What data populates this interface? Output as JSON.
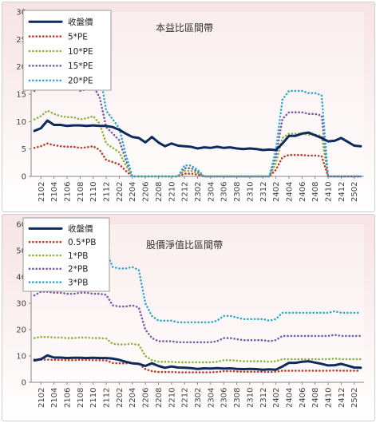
{
  "chart_data": [
    {
      "type": "line",
      "title": "本益比區間帶",
      "ylim": [
        0,
        30
      ],
      "yticks": [
        0,
        5,
        10,
        15,
        20,
        25,
        30
      ],
      "x": [
        "2101",
        "2102",
        "2103",
        "2104",
        "2105",
        "2106",
        "2107",
        "2108",
        "2109",
        "2110",
        "2111",
        "2112",
        "2201",
        "2202",
        "2203",
        "2204",
        "2205",
        "2206",
        "2207",
        "2208",
        "2209",
        "2210",
        "2211",
        "2212",
        "2301",
        "2302",
        "2303",
        "2304",
        "2305",
        "2306",
        "2307",
        "2308",
        "2309",
        "2310",
        "2311",
        "2312",
        "2401",
        "2402",
        "2403",
        "2404",
        "2405",
        "2406",
        "2407",
        "2408",
        "2409",
        "2410",
        "2411",
        "2412",
        "2501",
        "2502",
        "2503"
      ],
      "xtick_labels": [
        "2102",
        "2104",
        "2106",
        "2108",
        "2110",
        "2112",
        "2202",
        "2204",
        "2206",
        "2208",
        "2210",
        "2212",
        "2302",
        "2304",
        "2306",
        "2308",
        "2310",
        "2312",
        "2402",
        "2404",
        "2406",
        "2408",
        "2410",
        "2412",
        "2502"
      ],
      "legend_position": "top-left",
      "series": [
        {
          "name": "收盤價",
          "color": "#0e2a5c",
          "style": "solid",
          "values": [
            8.3,
            8.8,
            10.2,
            9.4,
            9.4,
            9.2,
            9.3,
            9.3,
            9.2,
            9.3,
            9.2,
            9.2,
            9.0,
            8.5,
            7.8,
            7.2,
            7.0,
            6.2,
            7.2,
            6.2,
            5.5,
            6.0,
            5.6,
            5.5,
            5.4,
            5.1,
            5.3,
            5.2,
            5.4,
            5.2,
            5.3,
            5.1,
            5.0,
            5.1,
            5.0,
            4.8,
            4.9,
            4.8,
            6.0,
            7.4,
            7.4,
            7.8,
            8.0,
            7.5,
            7.0,
            6.4,
            6.5,
            7.0,
            6.3,
            5.6,
            5.5
          ]
        },
        {
          "name": "5*PE",
          "color": "#c0392b",
          "style": "dotted",
          "values": [
            5.2,
            5.5,
            6.0,
            5.7,
            5.5,
            5.4,
            5.4,
            5.2,
            5.3,
            5.5,
            4.8,
            3.0,
            2.6,
            2.2,
            1.0,
            0,
            0,
            0,
            0,
            0,
            0,
            0,
            0,
            0.5,
            0.5,
            0.3,
            0,
            0,
            0,
            0,
            0,
            0,
            0,
            0,
            0,
            0,
            0,
            1.2,
            3.5,
            3.9,
            3.9,
            3.9,
            3.8,
            3.8,
            3.7,
            0,
            0,
            0,
            0,
            0,
            0
          ]
        },
        {
          "name": "10*PE",
          "color": "#8db33f",
          "style": "dotted",
          "values": [
            10.4,
            11.0,
            12.0,
            11.4,
            11.0,
            10.8,
            10.8,
            10.4,
            10.6,
            11.0,
            9.6,
            6.0,
            5.2,
            4.4,
            2.0,
            0,
            0,
            0,
            0,
            0,
            0,
            0,
            0,
            1.0,
            1.0,
            0.6,
            0,
            0,
            0,
            0,
            0,
            0,
            0,
            0,
            0,
            0,
            0,
            2.4,
            7.0,
            7.8,
            7.8,
            7.8,
            7.6,
            7.6,
            7.4,
            0,
            0,
            0,
            0,
            0,
            0
          ]
        },
        {
          "name": "15*PE",
          "color": "#7b5aa6",
          "style": "dotted",
          "values": [
            15.6,
            16.5,
            18.0,
            17.1,
            16.5,
            16.2,
            16.2,
            15.6,
            15.9,
            16.5,
            14.4,
            9.0,
            7.8,
            6.6,
            3.0,
            0,
            0,
            0,
            0,
            0,
            0,
            0,
            0,
            1.5,
            1.5,
            0.9,
            0,
            0,
            0,
            0,
            0,
            0,
            0,
            0,
            0,
            0,
            0,
            3.6,
            10.5,
            11.7,
            11.7,
            11.7,
            11.4,
            11.4,
            11.1,
            0,
            0,
            0,
            0,
            0,
            0
          ]
        },
        {
          "name": "20*PE",
          "color": "#36a9c9",
          "style": "dotted",
          "values": [
            20.8,
            22.0,
            24.0,
            22.8,
            22.0,
            21.6,
            21.6,
            20.8,
            21.2,
            22.0,
            19.2,
            12.0,
            10.4,
            8.8,
            4.0,
            0,
            0,
            0,
            0,
            0,
            0,
            0,
            0,
            2.0,
            2.0,
            1.2,
            0,
            0,
            0,
            0,
            0,
            0,
            0,
            0,
            0,
            0,
            0,
            4.8,
            14.0,
            15.6,
            15.6,
            15.6,
            15.2,
            15.2,
            14.8,
            0,
            0,
            0,
            0,
            0,
            0
          ]
        }
      ]
    },
    {
      "type": "line",
      "title": "股價淨值比區間帶",
      "ylim": [
        0,
        60
      ],
      "yticks": [
        0,
        10,
        20,
        30,
        40,
        50,
        60
      ],
      "x": [
        "2101",
        "2102",
        "2103",
        "2104",
        "2105",
        "2106",
        "2107",
        "2108",
        "2109",
        "2110",
        "2111",
        "2112",
        "2201",
        "2202",
        "2203",
        "2204",
        "2205",
        "2206",
        "2207",
        "2208",
        "2209",
        "2210",
        "2211",
        "2212",
        "2301",
        "2302",
        "2303",
        "2304",
        "2305",
        "2306",
        "2307",
        "2308",
        "2309",
        "2310",
        "2311",
        "2312",
        "2401",
        "2402",
        "2403",
        "2404",
        "2405",
        "2406",
        "2407",
        "2408",
        "2409",
        "2410",
        "2411",
        "2412",
        "2501",
        "2502",
        "2503"
      ],
      "xtick_labels": [
        "2102",
        "2104",
        "2106",
        "2108",
        "2110",
        "2112",
        "2202",
        "2204",
        "2206",
        "2208",
        "2210",
        "2212",
        "2302",
        "2304",
        "2306",
        "2308",
        "2310",
        "2312",
        "2402",
        "2404",
        "2406",
        "2408",
        "2410",
        "2412",
        "2502"
      ],
      "legend_position": "top-left",
      "series": [
        {
          "name": "收盤價",
          "color": "#0e2a5c",
          "style": "solid",
          "values": [
            8.3,
            8.8,
            10.2,
            9.4,
            9.4,
            9.2,
            9.3,
            9.3,
            9.2,
            9.3,
            9.2,
            9.2,
            9.0,
            8.5,
            7.8,
            7.2,
            7.0,
            6.2,
            7.2,
            6.2,
            5.5,
            6.0,
            5.6,
            5.5,
            5.4,
            5.1,
            5.3,
            5.2,
            5.4,
            5.2,
            5.3,
            5.1,
            5.0,
            5.1,
            5.0,
            4.8,
            4.9,
            4.8,
            6.0,
            7.4,
            7.4,
            7.8,
            8.0,
            7.5,
            7.0,
            6.4,
            6.5,
            7.0,
            6.3,
            5.6,
            5.5
          ]
        },
        {
          "name": "0.5*PB",
          "color": "#c0392b",
          "style": "dotted",
          "values": [
            8.7,
            8.6,
            8.6,
            8.5,
            8.5,
            8.4,
            8.4,
            8.5,
            8.5,
            8.4,
            8.4,
            8.3,
            7.3,
            7.2,
            7.2,
            7.3,
            7.1,
            5.0,
            4.2,
            3.9,
            3.9,
            3.9,
            3.8,
            3.8,
            3.8,
            3.8,
            3.8,
            3.8,
            3.9,
            4.2,
            4.2,
            4.1,
            4.0,
            4.0,
            4.0,
            4.0,
            3.9,
            4.0,
            4.4,
            4.4,
            4.4,
            4.4,
            4.4,
            4.4,
            4.4,
            4.4,
            4.5,
            4.4,
            4.4,
            4.4,
            4.4
          ]
        },
        {
          "name": "1*PB",
          "color": "#8db33f",
          "style": "dotted",
          "values": [
            16.8,
            17.2,
            17.2,
            17.0,
            17.0,
            16.8,
            16.8,
            17.0,
            17.0,
            16.8,
            16.8,
            16.6,
            14.6,
            14.4,
            14.4,
            14.6,
            14.2,
            10.0,
            8.4,
            7.8,
            7.8,
            7.8,
            7.6,
            7.6,
            7.6,
            7.6,
            7.6,
            7.6,
            7.8,
            8.4,
            8.4,
            8.2,
            8.0,
            8.0,
            8.0,
            8.0,
            7.8,
            8.0,
            8.8,
            8.8,
            8.8,
            8.8,
            8.8,
            8.8,
            8.8,
            8.8,
            9.0,
            8.8,
            8.8,
            8.8,
            8.8
          ]
        },
        {
          "name": "2*PB",
          "color": "#7b5aa6",
          "style": "dotted",
          "values": [
            33.0,
            34.4,
            34.4,
            34.0,
            34.0,
            33.6,
            33.6,
            34.0,
            34.0,
            33.6,
            33.6,
            33.2,
            29.2,
            28.8,
            28.8,
            29.2,
            28.4,
            20.0,
            16.8,
            15.6,
            15.6,
            15.6,
            15.2,
            15.2,
            15.2,
            15.2,
            15.2,
            15.2,
            15.6,
            16.8,
            16.8,
            16.4,
            16.0,
            16.0,
            16.0,
            16.0,
            15.6,
            16.0,
            17.6,
            17.6,
            17.6,
            17.6,
            17.6,
            17.6,
            17.6,
            17.6,
            18.0,
            17.6,
            17.6,
            17.6,
            17.6
          ]
        },
        {
          "name": "3*PB",
          "color": "#36a9c9",
          "style": "dotted",
          "values": [
            49.0,
            51.6,
            51.6,
            51.0,
            51.0,
            50.4,
            50.4,
            51.0,
            51.0,
            50.4,
            50.4,
            49.8,
            43.8,
            43.2,
            43.2,
            43.8,
            42.6,
            30.0,
            25.2,
            23.4,
            23.4,
            23.4,
            22.8,
            22.8,
            22.8,
            22.8,
            22.8,
            22.8,
            23.4,
            25.2,
            25.2,
            24.6,
            24.0,
            24.0,
            24.0,
            24.0,
            23.4,
            24.0,
            26.4,
            26.4,
            26.4,
            26.4,
            26.4,
            26.4,
            26.4,
            26.4,
            27.0,
            26.4,
            26.4,
            26.4,
            26.4
          ]
        }
      ]
    }
  ]
}
